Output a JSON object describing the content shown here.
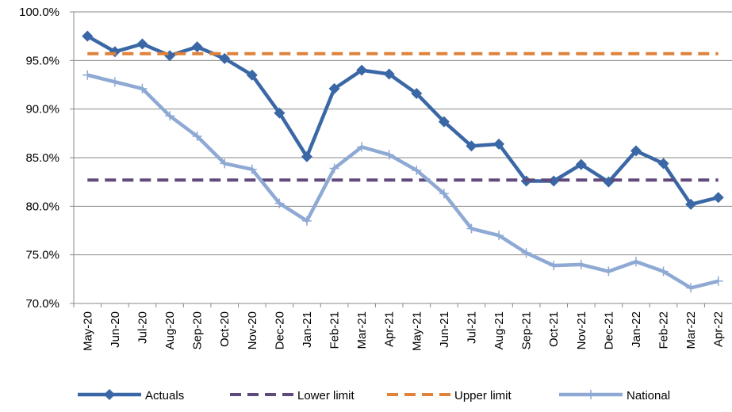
{
  "chart_data": {
    "type": "line",
    "categories": [
      "May-20",
      "Jun-20",
      "Jul-20",
      "Aug-20",
      "Sep-20",
      "Oct-20",
      "Nov-20",
      "Dec-20",
      "Jan-21",
      "Feb-21",
      "Mar-21",
      "Apr-21",
      "May-21",
      "Jun-21",
      "Jul-21",
      "Aug-21",
      "Sep-21",
      "Oct-21",
      "Nov-21",
      "Dec-21",
      "Jan-22",
      "Feb-22",
      "Mar-22",
      "Apr-22"
    ],
    "series": [
      {
        "name": "Actuals",
        "color": "#3a67a5",
        "marker": "diamond",
        "dashed": false,
        "values": [
          97.5,
          95.9,
          96.7,
          95.5,
          96.4,
          95.2,
          93.5,
          89.6,
          85.1,
          92.1,
          94.0,
          93.6,
          91.6,
          88.7,
          86.2,
          86.4,
          82.6,
          82.6,
          84.3,
          82.5,
          85.7,
          84.4,
          80.2,
          80.9
        ]
      },
      {
        "name": "Lower limit",
        "color": "#604a7b",
        "marker": "none",
        "dashed": true,
        "values": [
          82.7,
          82.7,
          82.7,
          82.7,
          82.7,
          82.7,
          82.7,
          82.7,
          82.7,
          82.7,
          82.7,
          82.7,
          82.7,
          82.7,
          82.7,
          82.7,
          82.7,
          82.7,
          82.7,
          82.7,
          82.7,
          82.7,
          82.7,
          82.7
        ]
      },
      {
        "name": "Upper limit",
        "color": "#e0823a",
        "marker": "none",
        "dashed": true,
        "values": [
          95.7,
          95.7,
          95.7,
          95.7,
          95.7,
          95.7,
          95.7,
          95.7,
          95.7,
          95.7,
          95.7,
          95.7,
          95.7,
          95.7,
          95.7,
          95.7,
          95.7,
          95.7,
          95.7,
          95.7,
          95.7,
          95.7,
          95.7,
          95.7
        ]
      },
      {
        "name": "National",
        "color": "#8ea9d3",
        "marker": "plus",
        "dashed": false,
        "values": [
          93.5,
          92.8,
          92.1,
          89.3,
          87.2,
          84.4,
          83.8,
          80.3,
          78.5,
          83.9,
          86.1,
          85.3,
          83.7,
          81.3,
          77.7,
          77.0,
          75.2,
          73.9,
          74.0,
          73.3,
          74.3,
          73.3,
          71.6,
          72.3
        ]
      }
    ],
    "ylim": [
      70,
      100
    ],
    "yticks": [
      {
        "value": 70,
        "label": "70.0%"
      },
      {
        "value": 75,
        "label": "75.0%"
      },
      {
        "value": 80,
        "label": "80.0%"
      },
      {
        "value": 85,
        "label": "85.0%"
      },
      {
        "value": 90,
        "label": "90.0%"
      },
      {
        "value": 95,
        "label": "95.0%"
      },
      {
        "value": 100,
        "label": "100.0%"
      }
    ],
    "grid": true,
    "legend": "bottom"
  }
}
